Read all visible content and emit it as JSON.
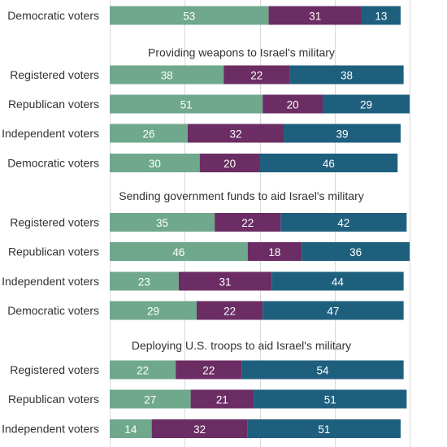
{
  "chart_data": {
    "type": "bar",
    "orientation": "horizontal",
    "stacked": true,
    "xlim": [
      0,
      100
    ],
    "grid": true,
    "colors": [
      "#6fa88d",
      "#6b2d63",
      "#1e5f7e"
    ],
    "groups": [
      {
        "title": "",
        "rows": [
          {
            "label": "Democratic voters",
            "values": [
              53,
              31,
              13
            ]
          }
        ]
      },
      {
        "title": "Providing weapons to Israel's military",
        "rows": [
          {
            "label": "Registered voters",
            "values": [
              38,
              22,
              38
            ]
          },
          {
            "label": "Republican voters",
            "values": [
              51,
              20,
              29
            ]
          },
          {
            "label": "Independent voters",
            "values": [
              26,
              32,
              39
            ]
          },
          {
            "label": "Democratic voters",
            "values": [
              30,
              20,
              46
            ]
          }
        ]
      },
      {
        "title": "Sending government funds to aid Israel's military",
        "rows": [
          {
            "label": "Registered voters",
            "values": [
              35,
              22,
              42
            ]
          },
          {
            "label": "Republican voters",
            "values": [
              46,
              18,
              36
            ]
          },
          {
            "label": "Independent voters",
            "values": [
              23,
              31,
              44
            ]
          },
          {
            "label": "Democratic voters",
            "values": [
              29,
              22,
              47
            ]
          }
        ]
      },
      {
        "title": "Deploying U.S. troops to aid Israel's military",
        "rows": [
          {
            "label": "Registered voters",
            "values": [
              22,
              22,
              54
            ]
          },
          {
            "label": "Republican voters",
            "values": [
              27,
              21,
              51
            ]
          },
          {
            "label": "Independent voters",
            "values": [
              14,
              32,
              51
            ]
          }
        ]
      }
    ]
  }
}
